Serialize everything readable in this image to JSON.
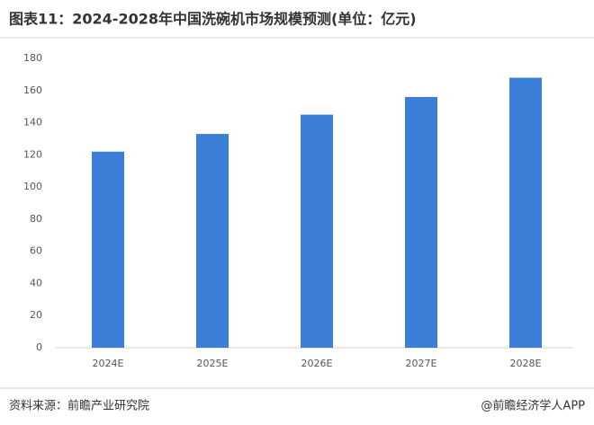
{
  "chart_data": {
    "type": "bar",
    "title": "图表11：2024-2028年中国洗碗机市场规模预测(单位：亿元)",
    "categories": [
      "2024E",
      "2025E",
      "2026E",
      "2027E",
      "2028E"
    ],
    "values": [
      122,
      133,
      145,
      156,
      168
    ],
    "color": "#3b7fd8",
    "ylim": [
      0,
      180
    ],
    "yticks": [
      0,
      20,
      40,
      60,
      80,
      100,
      120,
      140,
      160,
      180
    ],
    "grid": false
  },
  "source": "资料来源：前瞻产业研究院",
  "watermark": "@前瞻经济学人APP"
}
